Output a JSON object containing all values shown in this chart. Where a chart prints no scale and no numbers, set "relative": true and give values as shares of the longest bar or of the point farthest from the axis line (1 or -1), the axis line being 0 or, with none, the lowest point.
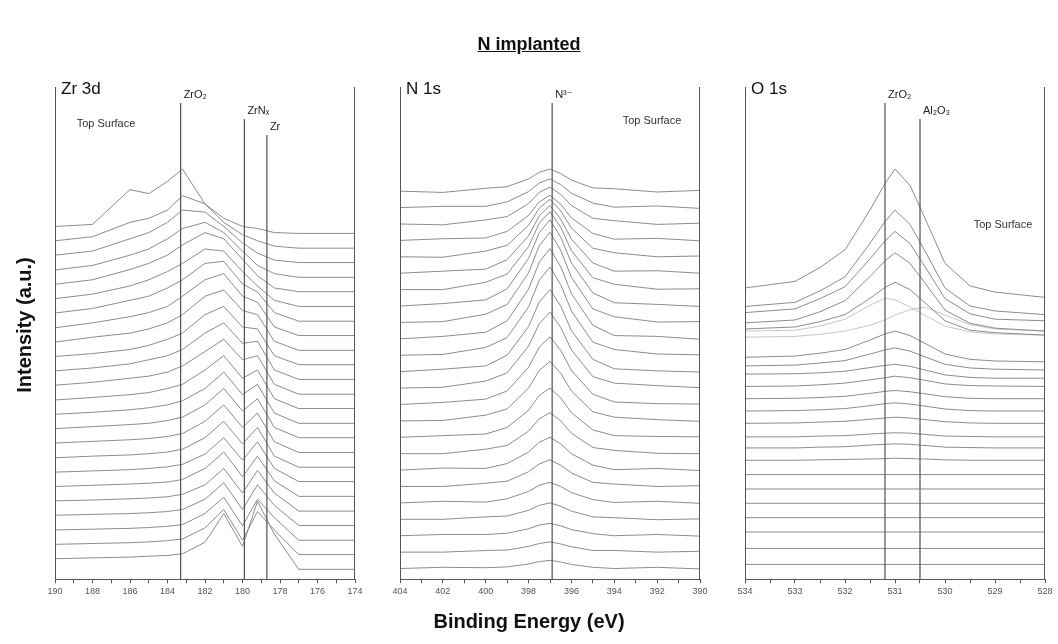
{
  "chart_data": [
    {
      "type": "line",
      "relative": true,
      "ylabel": "Intensity (a.u.)",
      "legend": false,
      "marker": "none",
      "annotations": [
        "Zr 3d",
        "Top Surface"
      ],
      "xlim": [
        190,
        174
      ],
      "xticks": [
        190,
        {
          "value": 189,
          "label": null
        },
        188,
        {
          "value": 187,
          "label": null
        },
        186,
        {
          "value": 185,
          "label": null
        },
        184,
        {
          "value": 183,
          "label": null
        },
        182,
        {
          "value": 181,
          "label": null
        },
        180,
        {
          "value": 179,
          "label": null
        },
        178,
        {
          "value": 177,
          "label": null
        },
        176,
        {
          "value": 175,
          "label": null
        },
        174
      ],
      "ref_lines": [
        {
          "axis": "x",
          "value": 183.3,
          "label": "ZrO₂",
          "color": "#505050"
        },
        {
          "axis": "x",
          "value": 179.9,
          "label": "ZrNₓ",
          "color": "#505050"
        },
        {
          "axis": "x",
          "value": 178.7,
          "label": "Zr",
          "color": "#505050"
        }
      ],
      "x": [
        190,
        188,
        186,
        185,
        184,
        183.2,
        182,
        181,
        180,
        179.2,
        178.3,
        177,
        174
      ],
      "series": [
        {
          "color": "#8c8c8c",
          "values": [
            0.86,
            0.865,
            0.95,
            0.94,
            0.97,
            1.0,
            0.915,
            0.88,
            0.86,
            0.855,
            0.845,
            0.843,
            0.843
          ]
        },
        {
          "color": "#8c8c8c",
          "values": [
            0.825,
            0.835,
            0.87,
            0.88,
            0.9,
            0.935,
            0.915,
            0.87,
            0.84,
            0.825,
            0.812,
            0.807,
            0.807
          ]
        },
        {
          "color": "#8c8c8c",
          "values": [
            0.79,
            0.8,
            0.83,
            0.845,
            0.87,
            0.9,
            0.895,
            0.86,
            0.82,
            0.795,
            0.778,
            0.772,
            0.772
          ]
        },
        {
          "color": "#8c8c8c",
          "values": [
            0.754,
            0.765,
            0.79,
            0.805,
            0.83,
            0.855,
            0.87,
            0.845,
            0.8,
            0.765,
            0.745,
            0.736,
            0.736
          ]
        },
        {
          "color": "#8c8c8c",
          "values": [
            0.719,
            0.73,
            0.755,
            0.77,
            0.79,
            0.815,
            0.845,
            0.83,
            0.78,
            0.74,
            0.71,
            0.701,
            0.701
          ]
        },
        {
          "color": "#8c8c8c",
          "values": [
            0.684,
            0.695,
            0.715,
            0.73,
            0.75,
            0.77,
            0.805,
            0.8,
            0.75,
            0.715,
            0.68,
            0.665,
            0.665
          ]
        },
        {
          "color": "#8c8c8c",
          "values": [
            0.649,
            0.66,
            0.68,
            0.69,
            0.71,
            0.73,
            0.77,
            0.775,
            0.72,
            0.7,
            0.65,
            0.629,
            0.629
          ]
        },
        {
          "color": "#8c8c8c",
          "values": [
            0.613,
            0.625,
            0.64,
            0.65,
            0.665,
            0.69,
            0.73,
            0.745,
            0.69,
            0.675,
            0.615,
            0.594,
            0.594
          ]
        },
        {
          "color": "#8c8c8c",
          "values": [
            0.578,
            0.59,
            0.6,
            0.61,
            0.625,
            0.645,
            0.69,
            0.705,
            0.655,
            0.645,
            0.58,
            0.558,
            0.558
          ]
        },
        {
          "color": "#8c8c8c",
          "values": [
            0.543,
            0.55,
            0.56,
            0.57,
            0.585,
            0.6,
            0.645,
            0.665,
            0.615,
            0.61,
            0.545,
            0.523,
            0.523
          ]
        },
        {
          "color": "#8c8c8c",
          "values": [
            0.508,
            0.515,
            0.525,
            0.535,
            0.545,
            0.56,
            0.6,
            0.625,
            0.575,
            0.58,
            0.51,
            0.487,
            0.487
          ]
        },
        {
          "color": "#8c8c8c",
          "values": [
            0.473,
            0.48,
            0.49,
            0.495,
            0.505,
            0.52,
            0.555,
            0.585,
            0.535,
            0.545,
            0.475,
            0.451,
            0.451
          ]
        },
        {
          "color": "#8c8c8c",
          "values": [
            0.437,
            0.443,
            0.45,
            0.455,
            0.465,
            0.475,
            0.51,
            0.545,
            0.49,
            0.51,
            0.44,
            0.416,
            0.416
          ]
        },
        {
          "color": "#8c8c8c",
          "values": [
            0.402,
            0.407,
            0.413,
            0.418,
            0.425,
            0.435,
            0.465,
            0.505,
            0.45,
            0.475,
            0.405,
            0.38,
            0.38
          ]
        },
        {
          "color": "#8c8c8c",
          "values": [
            0.367,
            0.372,
            0.377,
            0.38,
            0.387,
            0.395,
            0.425,
            0.465,
            0.41,
            0.44,
            0.37,
            0.345,
            0.345
          ]
        },
        {
          "color": "#8c8c8c",
          "values": [
            0.332,
            0.336,
            0.34,
            0.343,
            0.348,
            0.355,
            0.385,
            0.425,
            0.37,
            0.405,
            0.335,
            0.309,
            0.309
          ]
        },
        {
          "color": "#8c8c8c",
          "values": [
            0.296,
            0.3,
            0.303,
            0.306,
            0.31,
            0.317,
            0.345,
            0.385,
            0.33,
            0.37,
            0.3,
            0.273,
            0.273
          ]
        },
        {
          "color": "#8c8c8c",
          "values": [
            0.261,
            0.264,
            0.267,
            0.27,
            0.274,
            0.28,
            0.305,
            0.345,
            0.29,
            0.335,
            0.27,
            0.238,
            0.238
          ]
        },
        {
          "color": "#8c8c8c",
          "values": [
            0.226,
            0.229,
            0.232,
            0.234,
            0.237,
            0.243,
            0.27,
            0.31,
            0.25,
            0.3,
            0.24,
            0.202,
            0.202
          ]
        },
        {
          "color": "#8c8c8c",
          "values": [
            0.191,
            0.193,
            0.196,
            0.198,
            0.201,
            0.207,
            0.23,
            0.27,
            0.21,
            0.265,
            0.21,
            0.166,
            0.166
          ]
        },
        {
          "color": "#8c8c8c",
          "values": [
            0.156,
            0.158,
            0.16,
            0.162,
            0.165,
            0.17,
            0.195,
            0.235,
            0.17,
            0.23,
            0.18,
            0.131,
            0.131
          ]
        },
        {
          "color": "#8c8c8c",
          "values": [
            0.12,
            0.122,
            0.124,
            0.126,
            0.129,
            0.133,
            0.16,
            0.2,
            0.13,
            0.195,
            0.15,
            0.095,
            0.095
          ]
        },
        {
          "color": "#8c8c8c",
          "values": [
            0.085,
            0.087,
            0.089,
            0.091,
            0.094,
            0.098,
            0.125,
            0.17,
            0.095,
            0.165,
            0.12,
            0.06,
            0.06
          ]
        },
        {
          "color": "#8c8c8c",
          "values": [
            0.05,
            0.052,
            0.054,
            0.056,
            0.058,
            0.062,
            0.09,
            0.16,
            0.08,
            0.19,
            0.11,
            0.024,
            0.024
          ]
        }
      ]
    },
    {
      "type": "line",
      "relative": true,
      "title": "N implanted",
      "xlabel": "Binding Energy (eV)",
      "legend": false,
      "marker": "none",
      "annotations": [
        "N 1s",
        "Top Surface"
      ],
      "xlim": [
        404,
        390
      ],
      "xticks": [
        404,
        {
          "value": 403,
          "label": null
        },
        402,
        {
          "value": 401,
          "label": null
        },
        400,
        {
          "value": 399,
          "label": null
        },
        398,
        {
          "value": 397,
          "label": null
        },
        396,
        {
          "value": 395,
          "label": null
        },
        394,
        {
          "value": 393,
          "label": null
        },
        392,
        {
          "value": 391,
          "label": null
        },
        390
      ],
      "ref_lines": [
        {
          "axis": "x",
          "value": 396.9,
          "label": "N³⁻",
          "color": "#505050"
        }
      ],
      "x": [
        404,
        402,
        400,
        399,
        398,
        397.5,
        397,
        396.5,
        396,
        395,
        394,
        392,
        390
      ],
      "series": [
        {
          "color": "#8c8c8c",
          "values": [
            0.946,
            0.943,
            0.953,
            0.957,
            0.976,
            0.992,
            1.0,
            0.989,
            0.973,
            0.954,
            0.952,
            0.944,
            0.948
          ]
        },
        {
          "color": "#8c8c8c",
          "values": [
            0.906,
            0.909,
            0.909,
            0.92,
            0.945,
            0.966,
            0.976,
            0.962,
            0.941,
            0.917,
            0.907,
            0.91,
            0.904
          ]
        },
        {
          "color": "#8c8c8c",
          "values": [
            0.866,
            0.864,
            0.876,
            0.884,
            0.916,
            0.943,
            0.956,
            0.938,
            0.911,
            0.88,
            0.874,
            0.865,
            0.868
          ]
        },
        {
          "color": "#8c8c8c",
          "values": [
            0.826,
            0.83,
            0.832,
            0.848,
            0.887,
            0.92,
            0.936,
            0.914,
            0.881,
            0.843,
            0.829,
            0.831,
            0.825
          ]
        },
        {
          "color": "#8c8c8c",
          "values": [
            0.786,
            0.785,
            0.8,
            0.814,
            0.863,
            0.905,
            0.926,
            0.898,
            0.856,
            0.807,
            0.796,
            0.786,
            0.788
          ]
        },
        {
          "color": "#8c8c8c",
          "values": [
            0.746,
            0.751,
            0.756,
            0.779,
            0.837,
            0.886,
            0.911,
            0.878,
            0.829,
            0.771,
            0.751,
            0.752,
            0.746
          ]
        },
        {
          "color": "#8c8c8c",
          "values": [
            0.706,
            0.706,
            0.724,
            0.744,
            0.811,
            0.868,
            0.896,
            0.858,
            0.801,
            0.735,
            0.719,
            0.707,
            0.708
          ]
        },
        {
          "color": "#8c8c8c",
          "values": [
            0.666,
            0.672,
            0.681,
            0.708,
            0.782,
            0.845,
            0.876,
            0.834,
            0.771,
            0.698,
            0.674,
            0.67,
            0.665
          ]
        },
        {
          "color": "#8c8c8c",
          "values": [
            0.626,
            0.628,
            0.646,
            0.67,
            0.747,
            0.813,
            0.846,
            0.802,
            0.736,
            0.659,
            0.64,
            0.627,
            0.628
          ]
        },
        {
          "color": "#8c8c8c",
          "values": [
            0.586,
            0.592,
            0.602,
            0.63,
            0.707,
            0.773,
            0.806,
            0.762,
            0.696,
            0.619,
            0.594,
            0.592,
            0.585
          ]
        },
        {
          "color": "#8c8c8c",
          "values": [
            0.546,
            0.548,
            0.565,
            0.589,
            0.664,
            0.729,
            0.761,
            0.718,
            0.654,
            0.578,
            0.56,
            0.549,
            0.547
          ]
        },
        {
          "color": "#8c8c8c",
          "values": [
            0.506,
            0.512,
            0.52,
            0.546,
            0.616,
            0.676,
            0.706,
            0.666,
            0.606,
            0.536,
            0.513,
            0.508,
            0.505
          ]
        },
        {
          "color": "#8c8c8c",
          "values": [
            0.466,
            0.468,
            0.483,
            0.503,
            0.568,
            0.623,
            0.651,
            0.614,
            0.559,
            0.494,
            0.478,
            0.472,
            0.467
          ]
        },
        {
          "color": "#8c8c8c",
          "values": [
            0.426,
            0.431,
            0.439,
            0.459,
            0.517,
            0.566,
            0.591,
            0.558,
            0.509,
            0.451,
            0.432,
            0.428,
            0.427
          ]
        },
        {
          "color": "#8c8c8c",
          "values": [
            0.386,
            0.387,
            0.4,
            0.415,
            0.466,
            0.509,
            0.531,
            0.502,
            0.459,
            0.408,
            0.395,
            0.389,
            0.385
          ]
        },
        {
          "color": "#8c8c8c",
          "values": [
            0.346,
            0.35,
            0.354,
            0.37,
            0.412,
            0.448,
            0.466,
            0.442,
            0.406,
            0.364,
            0.35,
            0.348,
            0.347
          ]
        },
        {
          "color": "#8c8c8c",
          "values": [
            0.306,
            0.306,
            0.317,
            0.326,
            0.361,
            0.391,
            0.406,
            0.386,
            0.356,
            0.321,
            0.314,
            0.307,
            0.306
          ]
        },
        {
          "color": "#8c8c8c",
          "values": [
            0.266,
            0.271,
            0.27,
            0.282,
            0.31,
            0.334,
            0.346,
            0.33,
            0.306,
            0.278,
            0.267,
            0.27,
            0.265
          ]
        },
        {
          "color": "#8c8c8c",
          "values": [
            0.226,
            0.226,
            0.234,
            0.239,
            0.262,
            0.281,
            0.291,
            0.278,
            0.259,
            0.236,
            0.232,
            0.226,
            0.228
          ]
        },
        {
          "color": "#8c8c8c",
          "values": [
            0.186,
            0.19,
            0.188,
            0.196,
            0.214,
            0.229,
            0.236,
            0.226,
            0.211,
            0.194,
            0.187,
            0.19,
            0.185
          ]
        },
        {
          "color": "#8c8c8c",
          "values": [
            0.146,
            0.146,
            0.152,
            0.154,
            0.168,
            0.18,
            0.186,
            0.178,
            0.166,
            0.152,
            0.15,
            0.145,
            0.147
          ]
        },
        {
          "color": "#8c8c8c",
          "values": [
            0.106,
            0.109,
            0.109,
            0.112,
            0.123,
            0.132,
            0.136,
            0.13,
            0.121,
            0.111,
            0.106,
            0.109,
            0.105
          ]
        },
        {
          "color": "#8c8c8c",
          "values": [
            0.066,
            0.066,
            0.07,
            0.071,
            0.08,
            0.087,
            0.091,
            0.086,
            0.079,
            0.07,
            0.07,
            0.066,
            0.068
          ]
        },
        {
          "color": "#8c8c8c",
          "values": [
            0.026,
            0.029,
            0.028,
            0.03,
            0.037,
            0.043,
            0.046,
            0.042,
            0.036,
            0.029,
            0.026,
            0.029,
            0.025
          ]
        }
      ]
    },
    {
      "type": "line",
      "relative": true,
      "legend": false,
      "marker": "none",
      "annotations": [
        "O 1s",
        "Top Surface"
      ],
      "xlim": [
        534,
        528
      ],
      "xticks": [
        534,
        {
          "value": 533.5,
          "label": null
        },
        533,
        {
          "value": 532.5,
          "label": null
        },
        532,
        {
          "value": 531.5,
          "label": null
        },
        531,
        {
          "value": 530.5,
          "label": null
        },
        530,
        {
          "value": 529.5,
          "label": null
        },
        529,
        {
          "value": 528.5,
          "label": null
        },
        528
      ],
      "ref_lines": [
        {
          "axis": "x",
          "value": 531.2,
          "label": "ZrO₂",
          "color": "#505050"
        },
        {
          "axis": "x",
          "value": 530.5,
          "label": "Al₂O₃",
          "color": "#505050"
        }
      ],
      "x": [
        534,
        533,
        532.5,
        532,
        531.5,
        531.2,
        531,
        530.7,
        530.4,
        530,
        529.5,
        529,
        528
      ],
      "series": [
        {
          "color": "#8c8c8c",
          "values": [
            0.71,
            0.726,
            0.76,
            0.803,
            0.9,
            0.965,
            1.0,
            0.96,
            0.88,
            0.77,
            0.715,
            0.7,
            0.687
          ]
        },
        {
          "color": "#8c8c8c",
          "values": [
            0.665,
            0.675,
            0.703,
            0.737,
            0.819,
            0.872,
            0.9,
            0.865,
            0.8,
            0.71,
            0.666,
            0.654,
            0.645
          ]
        },
        {
          "color": "#8c8c8c",
          "values": [
            0.65,
            0.659,
            0.684,
            0.713,
            0.781,
            0.825,
            0.848,
            0.818,
            0.762,
            0.684,
            0.647,
            0.634,
            0.63
          ]
        },
        {
          "color": "#8c8c8c",
          "values": [
            0.625,
            0.632,
            0.652,
            0.679,
            0.738,
            0.776,
            0.796,
            0.77,
            0.722,
            0.656,
            0.624,
            0.612,
            0.605
          ]
        },
        {
          "color": "#8c8c8c",
          "values": [
            0.61,
            0.615,
            0.628,
            0.645,
            0.685,
            0.711,
            0.724,
            0.706,
            0.674,
            0.63,
            0.607,
            0.601,
            0.595
          ]
        },
        {
          "color": "#c8c8c8",
          "values": [
            0.605,
            0.607,
            0.617,
            0.634,
            0.668,
            0.685,
            0.681,
            0.664,
            0.643,
            0.617,
            0.603,
            0.598,
            0.595
          ]
        },
        {
          "color": "#c8c8c8",
          "values": [
            0.59,
            0.592,
            0.597,
            0.605,
            0.619,
            0.632,
            0.644,
            0.657,
            0.663,
            0.644,
            0.621,
            0.61,
            0.605
          ]
        },
        {
          "color": "#8c8c8c",
          "values": [
            0.541,
            0.544,
            0.551,
            0.56,
            0.583,
            0.598,
            0.605,
            0.594,
            0.575,
            0.549,
            0.536,
            0.532,
            0.53
          ]
        },
        {
          "color": "#8c8c8c",
          "values": [
            0.52,
            0.522,
            0.527,
            0.533,
            0.549,
            0.559,
            0.564,
            0.556,
            0.542,
            0.524,
            0.515,
            0.512,
            0.51
          ]
        },
        {
          "color": "#8c8c8c",
          "values": [
            0.5,
            0.501,
            0.503,
            0.507,
            0.516,
            0.521,
            0.524,
            0.519,
            0.51,
            0.498,
            0.492,
            0.49,
            0.49
          ]
        },
        {
          "color": "#8c8c8c",
          "values": [
            0.47,
            0.471,
            0.474,
            0.478,
            0.486,
            0.491,
            0.495,
            0.491,
            0.485,
            0.476,
            0.472,
            0.471,
            0.47
          ]
        },
        {
          "color": "#8c8c8c",
          "values": [
            0.44,
            0.441,
            0.443,
            0.446,
            0.453,
            0.458,
            0.46,
            0.457,
            0.452,
            0.445,
            0.441,
            0.44,
            0.44
          ]
        },
        {
          "color": "#8c8c8c",
          "values": [
            0.41,
            0.411,
            0.413,
            0.416,
            0.423,
            0.428,
            0.43,
            0.427,
            0.422,
            0.415,
            0.411,
            0.41,
            0.41
          ]
        },
        {
          "color": "#8c8c8c",
          "values": [
            0.38,
            0.381,
            0.383,
            0.385,
            0.39,
            0.393,
            0.395,
            0.393,
            0.389,
            0.384,
            0.381,
            0.38,
            0.38
          ]
        },
        {
          "color": "#8c8c8c",
          "values": [
            0.347,
            0.347,
            0.349,
            0.35,
            0.354,
            0.356,
            0.357,
            0.356,
            0.353,
            0.349,
            0.348,
            0.347,
            0.347
          ]
        },
        {
          "color": "#8c8c8c",
          "values": [
            0.32,
            0.32,
            0.322,
            0.323,
            0.327,
            0.329,
            0.33,
            0.329,
            0.326,
            0.322,
            0.321,
            0.32,
            0.32
          ]
        },
        {
          "color": "#8c8c8c",
          "values": [
            0.29,
            0.29,
            0.291,
            0.292,
            0.293,
            0.294,
            0.295,
            0.294,
            0.293,
            0.291,
            0.29,
            0.29,
            0.29
          ]
        },
        {
          "color": "#8c8c8c",
          "values": [
            0.255,
            0.255,
            0.255,
            0.255,
            0.255,
            0.255,
            0.255,
            0.255,
            0.255,
            0.255,
            0.255,
            0.255,
            0.255
          ]
        },
        {
          "color": "#8c8c8c",
          "values": [
            0.22,
            0.22,
            0.22,
            0.22,
            0.22,
            0.22,
            0.22,
            0.22,
            0.22,
            0.22,
            0.22,
            0.22,
            0.22
          ]
        },
        {
          "color": "#8c8c8c",
          "values": [
            0.185,
            0.185,
            0.185,
            0.185,
            0.185,
            0.185,
            0.185,
            0.185,
            0.185,
            0.185,
            0.185,
            0.185,
            0.185
          ]
        },
        {
          "color": "#8c8c8c",
          "values": [
            0.15,
            0.15,
            0.15,
            0.15,
            0.15,
            0.15,
            0.15,
            0.15,
            0.15,
            0.15,
            0.15,
            0.15,
            0.15
          ]
        },
        {
          "color": "#8c8c8c",
          "values": [
            0.115,
            0.115,
            0.115,
            0.115,
            0.115,
            0.115,
            0.115,
            0.115,
            0.115,
            0.115,
            0.115,
            0.115,
            0.115
          ]
        },
        {
          "color": "#8c8c8c",
          "values": [
            0.075,
            0.075,
            0.075,
            0.075,
            0.075,
            0.075,
            0.075,
            0.075,
            0.075,
            0.075,
            0.075,
            0.075,
            0.075
          ]
        },
        {
          "color": "#8c8c8c",
          "values": [
            0.036,
            0.036,
            0.036,
            0.036,
            0.036,
            0.036,
            0.036,
            0.036,
            0.036,
            0.036,
            0.036,
            0.036,
            0.036
          ]
        }
      ]
    }
  ]
}
